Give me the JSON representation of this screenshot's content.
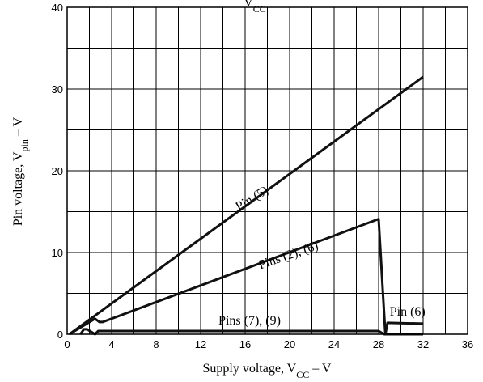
{
  "chart_data": {
    "type": "line",
    "title": "",
    "title_fragment": "CC",
    "xlabel": "Supply voltage, V",
    "xlabel_sub": "CC",
    "xlabel_suffix": " – V",
    "ylabel": "Pin voltage, V",
    "ylabel_sub": "pin",
    "ylabel_suffix": " – V",
    "xlim": [
      0,
      36
    ],
    "ylim": [
      0,
      40
    ],
    "x_ticks": [
      0,
      4,
      8,
      12,
      16,
      20,
      24,
      28,
      32,
      36
    ],
    "y_ticks": [
      0,
      10,
      20,
      30,
      40
    ],
    "x_minor_step": 2,
    "y_minor_step": 5,
    "grid": true,
    "series": [
      {
        "name": "Pin (5)",
        "x": [
          0.2,
          32
        ],
        "y": [
          0,
          31.5
        ]
      },
      {
        "name": "Pins (2), (6)",
        "x": [
          0.2,
          2.5,
          2.9,
          3.2,
          28,
          28.6,
          28.8,
          32
        ],
        "y": [
          0,
          1.9,
          1.5,
          1.5,
          14.1,
          0,
          1.4,
          1.3
        ]
      },
      {
        "name": "Pins (7), (9)",
        "x": [
          1.2,
          1.5,
          1.8,
          2.5,
          2.8,
          28,
          28.5,
          32
        ],
        "y": [
          0,
          0.6,
          0.6,
          0,
          0.4,
          0.4,
          0,
          0
        ]
      }
    ],
    "annotations": [
      {
        "text": "Pin (5)",
        "x": 16.8,
        "y": 16.2,
        "angle": -31
      },
      {
        "text": "Pins (2), (6)",
        "x": 20,
        "y": 9.2,
        "angle": -19
      },
      {
        "text": "Pins (7), (9)",
        "x": 16.4,
        "y": 1.2,
        "angle": 0
      },
      {
        "text": "Pin (6)",
        "x": 30.6,
        "y": 2.3,
        "angle": 0
      }
    ]
  }
}
